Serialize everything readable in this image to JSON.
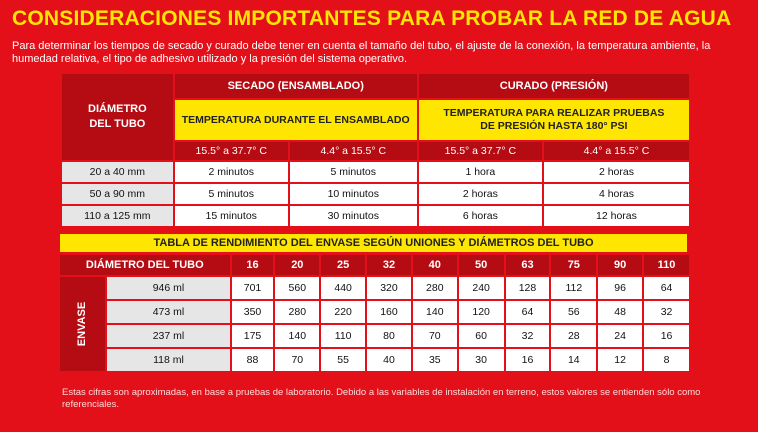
{
  "title": "CONSIDERACIONES IMPORTANTES PARA PROBAR LA RED DE AGUA",
  "intro": "Para determinar los tiempos de secado y curado debe tener en cuenta el tamaño del tubo, el ajuste de la conexión, la temperatura ambiente, la humedad relativa, el tipo de adhesivo utilizado y la presión del sistema operativo.",
  "colors": {
    "background": "#e3101a",
    "dark_red": "#b50b12",
    "yellow": "#ffe600"
  },
  "table1": {
    "diam_header": "DIÁMETRO DEL TUBO",
    "secado": "SECADO (ENSAMBLADO)",
    "curado": "CURADO (PRESIÓN)",
    "secado_sub": "TEMPERATURA DURANTE EL ENSAMBLADO",
    "curado_sub": "TEMPERATURA PARA REALIZAR PRUEBAS DE PRESIÓN HASTA 180° PSI",
    "temps": [
      "15.5° a 37.7° C",
      "4.4° a 15.5° C",
      "15.5° a 37.7° C",
      "4.4° a 15.5° C"
    ],
    "rows": [
      {
        "diam": "20 a 40 mm",
        "vals": [
          "2 minutos",
          "5 minutos",
          "1 hora",
          "2 horas"
        ]
      },
      {
        "diam": "50 a 90 mm",
        "vals": [
          "5 minutos",
          "10 minutos",
          "2 horas",
          "4 horas"
        ]
      },
      {
        "diam": "110 a 125 mm",
        "vals": [
          "15 minutos",
          "30 minutos",
          "6 horas",
          "12 horas"
        ]
      }
    ]
  },
  "table2": {
    "banner": "TABLA DE RENDIMIENTO DEL ENVASE SEGÚN UNIONES Y DIÁMETROS DEL TUBO",
    "diam_header": "DIÁMETRO DEL TUBO",
    "envase_label": "ENVASE",
    "diameters": [
      "16",
      "20",
      "25",
      "32",
      "40",
      "50",
      "63",
      "75",
      "90",
      "110"
    ],
    "rows": [
      {
        "size": "946 ml",
        "vals": [
          "701",
          "560",
          "440",
          "320",
          "280",
          "240",
          "128",
          "112",
          "96",
          "64"
        ]
      },
      {
        "size": "473 ml",
        "vals": [
          "350",
          "280",
          "220",
          "160",
          "140",
          "120",
          "64",
          "56",
          "48",
          "32"
        ]
      },
      {
        "size": "237 ml",
        "vals": [
          "175",
          "140",
          "110",
          "80",
          "70",
          "60",
          "32",
          "28",
          "24",
          "16"
        ]
      },
      {
        "size": "118 ml",
        "vals": [
          "88",
          "70",
          "55",
          "40",
          "35",
          "30",
          "16",
          "14",
          "12",
          "8"
        ]
      }
    ]
  },
  "footnote": "Estas cifras son aproximadas, en base a pruebas de laboratorio. Debido a las variables de instalación en terreno, estos valores se entienden sólo como referenciales."
}
